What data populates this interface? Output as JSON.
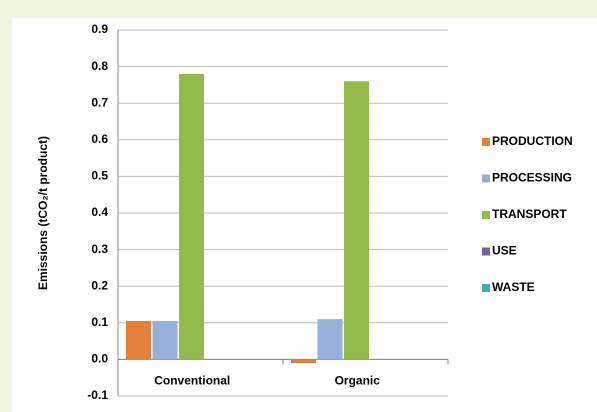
{
  "chart_data": {
    "type": "bar",
    "ylabel": "Emissions (tCO₂/t product)",
    "categories": [
      "Conventional",
      "Organic"
    ],
    "series": [
      {
        "name": "PRODUCTION",
        "color": "#e3803c",
        "values": [
          0.105,
          -0.01
        ]
      },
      {
        "name": "PROCESSING",
        "color": "#96b0d9",
        "values": [
          0.105,
          0.11
        ]
      },
      {
        "name": "TRANSPORT",
        "color": "#92bb4c",
        "values": [
          0.78,
          0.76
        ]
      },
      {
        "name": "USE",
        "color": "#7b5fa2",
        "values": [
          0,
          0
        ]
      },
      {
        "name": "WASTE",
        "color": "#3fa9c6",
        "values": [
          0,
          0
        ]
      }
    ],
    "ylim": [
      -0.1,
      0.9
    ],
    "yticks": [
      -0.1,
      {
        "value": 0,
        "label": "0.0"
      },
      0.1,
      0.2,
      0.3,
      0.4,
      0.5,
      0.6,
      0.7,
      0.8,
      0.9
    ],
    "grid": true,
    "legend": "right"
  }
}
